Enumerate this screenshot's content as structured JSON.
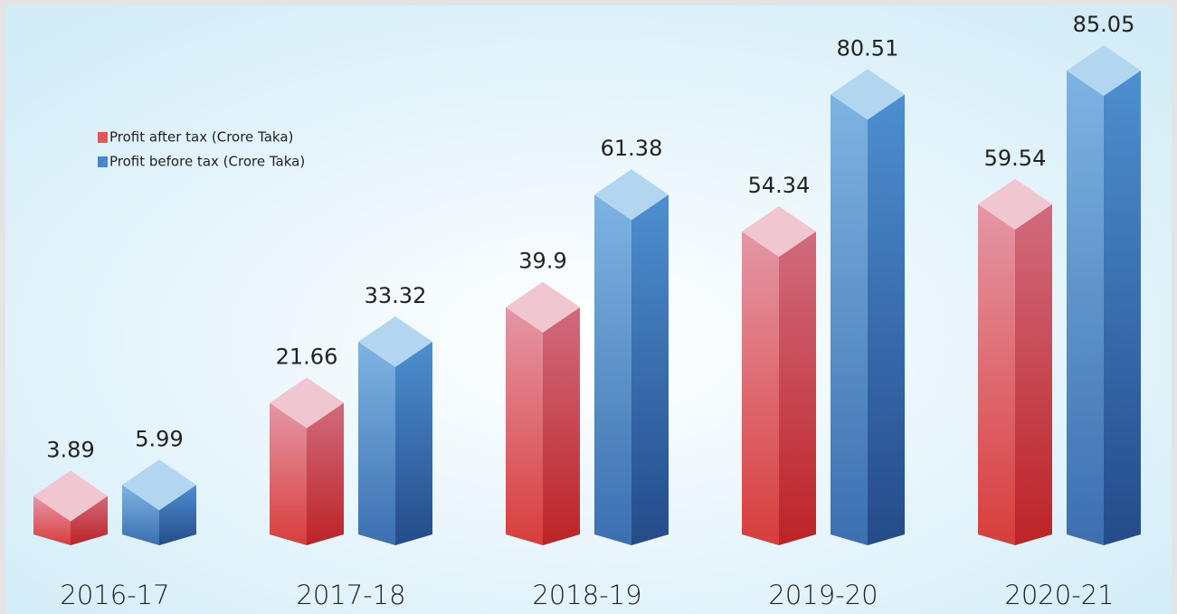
{
  "chart_data": {
    "type": "bar3d",
    "categories": [
      "2016-17",
      "2017-18",
      "2018-19",
      "2019-20",
      "2020-21"
    ],
    "series": [
      {
        "name": "Profit after tax (Crore Taka)",
        "color": "#e0575a",
        "values": [
          3.89,
          21.66,
          39.9,
          54.34,
          59.54
        ]
      },
      {
        "name": "Profit before tax (Crore Taka)",
        "color": "#4a86c8",
        "values": [
          5.99,
          33.32,
          61.38,
          80.51,
          85.05
        ]
      }
    ],
    "legend": "upper left"
  }
}
